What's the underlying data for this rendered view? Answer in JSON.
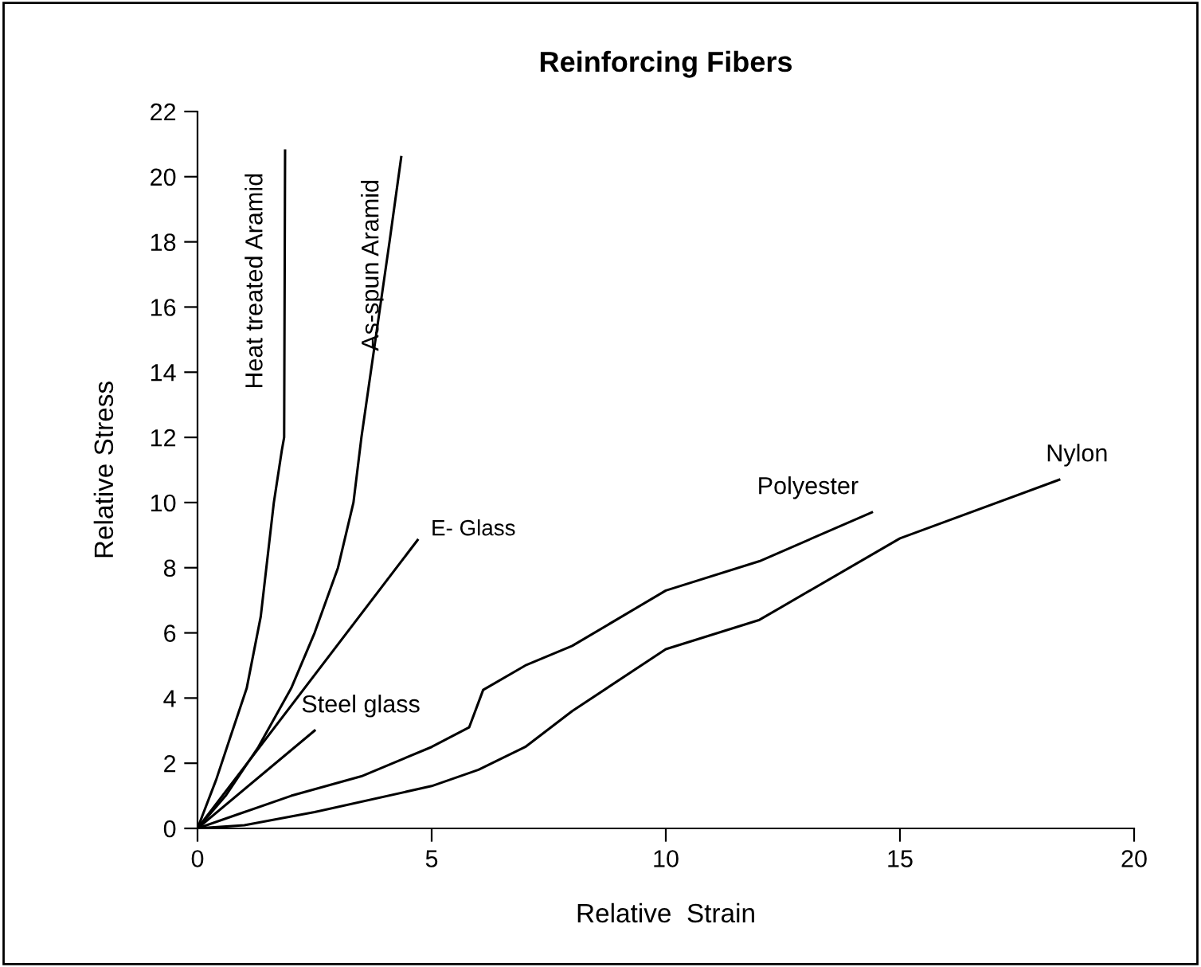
{
  "chart_data": {
    "type": "line",
    "title": "Reinforcing Fibers",
    "xlabel": "Relative  Strain",
    "ylabel": "Relative Stress",
    "xlim": [
      0,
      20
    ],
    "ylim": [
      0,
      22
    ],
    "xticks": [
      0,
      5,
      10,
      15,
      20
    ],
    "yticks": [
      0,
      2,
      4,
      6,
      8,
      10,
      12,
      14,
      16,
      18,
      20,
      22
    ],
    "grid": false,
    "legend": false,
    "series": [
      {
        "name": "Heat treated Aramid",
        "color": "#000000",
        "x": [
          0,
          0.4,
          0.7,
          1.05,
          1.35,
          1.63,
          1.8,
          1.85,
          1.87
        ],
        "values": [
          0,
          1.5,
          2.8,
          4.3,
          6.5,
          10,
          11.6,
          12,
          20.8
        ]
      },
      {
        "name": "As-spun Aramid",
        "color": "#000000",
        "x": [
          0,
          0.6,
          1.3,
          2.0,
          2.5,
          3.0,
          3.33,
          3.5,
          3.8,
          4.1,
          4.35
        ],
        "values": [
          0,
          1,
          2.5,
          4.3,
          6,
          8,
          10,
          12,
          15,
          18,
          20.6
        ]
      },
      {
        "name": "E- Glass",
        "color": "#000000",
        "x": [
          0,
          4.7
        ],
        "values": [
          0,
          8.85
        ]
      },
      {
        "name": "Steel glass",
        "color": "#000000",
        "x": [
          0,
          2.5
        ],
        "values": [
          0,
          3.0
        ]
      },
      {
        "name": "Polyester",
        "color": "#000000",
        "x": [
          0,
          1,
          2,
          3.5,
          5,
          5.8,
          6.1,
          7,
          8,
          10,
          12,
          14.4
        ],
        "values": [
          0,
          0.5,
          1.0,
          1.6,
          2.5,
          3.1,
          4.25,
          5.0,
          5.6,
          7.3,
          8.2,
          9.7
        ]
      },
      {
        "name": "Nylon",
        "color": "#000000",
        "x": [
          0,
          1,
          2.5,
          5,
          6,
          7,
          8,
          10,
          12,
          15,
          18.4
        ],
        "values": [
          0,
          0.1,
          0.5,
          1.3,
          1.8,
          2.5,
          3.6,
          5.5,
          6.4,
          8.9,
          10.7
        ]
      }
    ]
  }
}
